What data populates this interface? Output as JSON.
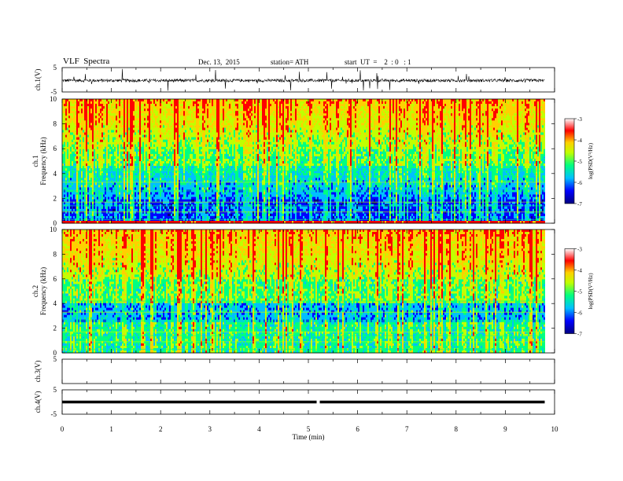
{
  "header": {
    "title": "VLF  Spectra",
    "date": "Dec. 13,  2015",
    "station": "station= ATH",
    "start": "start  UT  =    2  : 0   : 1"
  },
  "colors": {
    "scale": [
      "#000080",
      "#0000ff",
      "#00c0ff",
      "#00ff80",
      "#c0ff00",
      "#ffd000",
      "#ff0000",
      "#ffffff"
    ],
    "trace": "#000000"
  },
  "chart_data": [
    {
      "type": "line",
      "name": "ch1-waveform",
      "ylabel": "ch.1(V)",
      "ylim": [
        -5,
        5
      ],
      "yticks": [
        "5",
        "-5"
      ],
      "xlim": [
        0,
        10
      ],
      "baseline": -0.3,
      "noise_amplitude": 0.6,
      "spike_amplitude": 4.5
    },
    {
      "type": "heatmap",
      "name": "ch1-spectrogram",
      "ylabel": "ch.1\nFrequency  (kHz)",
      "ylim": [
        0,
        10
      ],
      "yticks": [
        "0",
        "2",
        "4",
        "6",
        "8",
        "10"
      ],
      "xlim": [
        0,
        9.8
      ],
      "colorbar": {
        "label": "log(PSD(V²/Hz)",
        "range": [
          -7,
          -3
        ],
        "ticks": [
          "-3",
          "-4",
          "-5",
          "-6",
          "-7"
        ]
      }
    },
    {
      "type": "heatmap",
      "name": "ch2-spectrogram",
      "ylabel": "ch.2\nFrequency  (kHz)",
      "ylim": [
        0,
        10
      ],
      "yticks": [
        "0",
        "2",
        "4",
        "6",
        "8",
        "10"
      ],
      "xlim": [
        0,
        9.8
      ],
      "colorbar": {
        "label": "log(PSD(V²/Hz)",
        "range": [
          -7,
          -3
        ],
        "ticks": [
          "-3",
          "-4",
          "-5",
          "-6",
          "-7"
        ]
      }
    },
    {
      "type": "line",
      "name": "ch3-waveform",
      "ylabel": "ch.3(V)",
      "ylim": [
        -5,
        5
      ],
      "yticks": [
        "5"
      ],
      "xlim": [
        0,
        10
      ]
    },
    {
      "type": "line",
      "name": "ch4-waveform",
      "ylabel": "ch.4(V)",
      "ylim": [
        -5,
        5
      ],
      "yticks": [
        "5",
        "-5"
      ],
      "xlim": [
        0,
        9.8
      ],
      "values_constant": 0,
      "gap_at": 5.2
    }
  ],
  "xaxis": {
    "label": "Time  (min)",
    "ticks": [
      "0",
      "1",
      "2",
      "3",
      "4",
      "5",
      "6",
      "7",
      "8",
      "9",
      "10"
    ],
    "range": [
      0,
      10
    ]
  }
}
